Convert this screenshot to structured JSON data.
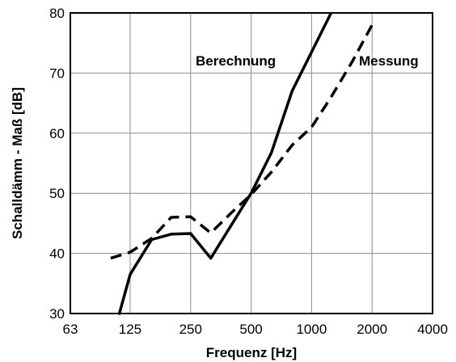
{
  "chart_data": {
    "type": "line",
    "title": "",
    "xlabel": "Frequenz [Hz]",
    "ylabel": "Schalldämm - Maß [dB]",
    "xscale": "log2",
    "xticks": [
      63,
      125,
      250,
      500,
      1000,
      2000,
      4000
    ],
    "xtick_labels": [
      "63",
      "125",
      "250",
      "500",
      "1000",
      "2000",
      "4000"
    ],
    "xlim": [
      63,
      4000
    ],
    "yticks": [
      30,
      40,
      50,
      60,
      70,
      80
    ],
    "ytick_labels": [
      "30",
      "40",
      "50",
      "60",
      "70",
      "80"
    ],
    "ylim": [
      30,
      80
    ],
    "grid": true,
    "legend": "none",
    "series": [
      {
        "name": "Berechnung",
        "style": "solid",
        "color": "#000000",
        "x": [
          110,
          125,
          160,
          200,
          250,
          315,
          400,
          500,
          630,
          800,
          1000,
          1250
        ],
        "y": [
          29.8,
          36.5,
          42.3,
          43.2,
          43.3,
          39.2,
          44.8,
          50.0,
          56.7,
          67.0,
          73.5,
          80.0
        ]
      },
      {
        "name": "Messung",
        "style": "dashed",
        "color": "#000000",
        "x": [
          100,
          125,
          160,
          200,
          250,
          315,
          400,
          500,
          630,
          800,
          1000,
          1250,
          1600,
          2000
        ],
        "y": [
          39.2,
          40.2,
          42.5,
          46.0,
          46.1,
          43.4,
          46.8,
          49.8,
          53.5,
          58.0,
          61.0,
          66.0,
          72.0,
          78.0
        ]
      }
    ],
    "annotations": [
      {
        "text": "Berechnung",
        "series": 0
      },
      {
        "text": "Messung",
        "series": 1
      }
    ]
  }
}
